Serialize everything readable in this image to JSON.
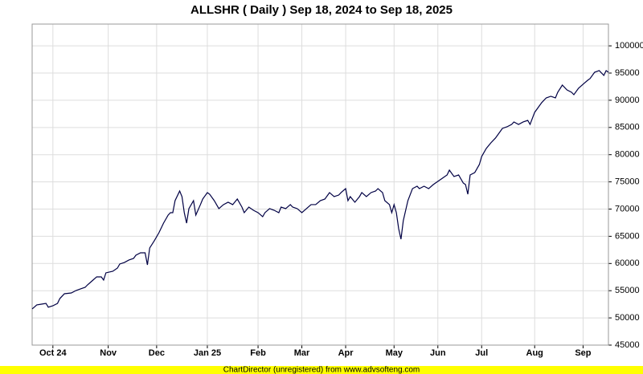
{
  "chart_data": {
    "type": "line",
    "title": "ALLSHR ( Daily ) Sep 18, 2024 to Sep 18, 2025",
    "color": "#000044",
    "grid": true,
    "xlim": [
      0,
      250
    ],
    "ylim": [
      45000,
      104000
    ],
    "yticks": [
      45000,
      50000,
      55000,
      60000,
      65000,
      70000,
      75000,
      80000,
      85000,
      90000,
      95000,
      100000
    ],
    "xticks": [
      {
        "value": 9,
        "label": "Oct 24"
      },
      {
        "value": 33,
        "label": "Nov"
      },
      {
        "value": 54,
        "label": "Dec"
      },
      {
        "value": 76,
        "label": "Jan 25"
      },
      {
        "value": 98,
        "label": "Feb"
      },
      {
        "value": 117,
        "label": "Mar"
      },
      {
        "value": 136,
        "label": "Apr"
      },
      {
        "value": 157,
        "label": "May"
      },
      {
        "value": 176,
        "label": "Jun"
      },
      {
        "value": 195,
        "label": "Jul"
      },
      {
        "value": 218,
        "label": "Aug"
      },
      {
        "value": 239,
        "label": "Sep"
      }
    ],
    "x": [
      0,
      2,
      4,
      6,
      7,
      9,
      11,
      12,
      14,
      17,
      19,
      21,
      23,
      24,
      26,
      28,
      30,
      31,
      32,
      35,
      37,
      38,
      40,
      42,
      44,
      45,
      47,
      49,
      50,
      51,
      53,
      55,
      57,
      59,
      60,
      61,
      62,
      64,
      65,
      66,
      67,
      68,
      70,
      71,
      73,
      74,
      76,
      77,
      79,
      81,
      83,
      85,
      87,
      89,
      91,
      92,
      94,
      96,
      98,
      100,
      101,
      103,
      105,
      107,
      108,
      110,
      112,
      113,
      115,
      117,
      119,
      121,
      123,
      125,
      127,
      129,
      131,
      133,
      134,
      136,
      137,
      138,
      140,
      142,
      143,
      145,
      147,
      149,
      150,
      152,
      153,
      155,
      156,
      157,
      158,
      159,
      160,
      161,
      163,
      165,
      167,
      168,
      170,
      172,
      174,
      175,
      178,
      180,
      181,
      183,
      185,
      187,
      188,
      189,
      190,
      192,
      194,
      195,
      197,
      199,
      201,
      202,
      204,
      206,
      208,
      209,
      211,
      213,
      215,
      216,
      218,
      220,
      221,
      223,
      225,
      227,
      228,
      230,
      232,
      234,
      235,
      237,
      239,
      241,
      242,
      244,
      246,
      248,
      249,
      250
    ],
    "values": [
      51640,
      52380,
      52520,
      52670,
      51970,
      52230,
      52670,
      53550,
      54440,
      54590,
      55030,
      55330,
      55620,
      56060,
      56800,
      57540,
      57540,
      56950,
      58280,
      58570,
      59160,
      59900,
      60190,
      60640,
      60930,
      61520,
      61960,
      61960,
      59750,
      62850,
      64180,
      65650,
      67420,
      68900,
      69340,
      69340,
      71550,
      73320,
      72290,
      69340,
      67420,
      70080,
      71550,
      68900,
      70820,
      71850,
      73030,
      72730,
      71550,
      70080,
      70820,
      71260,
      70820,
      71850,
      70370,
      69340,
      70370,
      69780,
      69340,
      68600,
      69340,
      70080,
      69780,
      69340,
      70370,
      70080,
      70820,
      70370,
      70080,
      69340,
      70080,
      70820,
      70820,
      71550,
      71850,
      73030,
      72290,
      72580,
      73030,
      73760,
      71550,
      72290,
      71260,
      72290,
      73030,
      72290,
      73030,
      73320,
      73760,
      73030,
      71550,
      70820,
      69340,
      70820,
      69340,
      66390,
      64470,
      67860,
      71550,
      73760,
      74200,
      73760,
      74200,
      73760,
      74500,
      74800,
      75680,
      76270,
      77160,
      75980,
      76270,
      74800,
      74500,
      72730,
      76270,
      76710,
      78190,
      79660,
      81140,
      82170,
      83060,
      83650,
      84830,
      85120,
      85560,
      86010,
      85560,
      86010,
      86300,
      85560,
      87780,
      88960,
      89540,
      90430,
      90730,
      90430,
      91460,
      92790,
      91900,
      91460,
      91020,
      92200,
      92940,
      93670,
      93970,
      95150,
      95450,
      94560,
      95450,
      95150
    ]
  },
  "footer": "ChartDirector (unregistered) from www.advsofteng.com"
}
